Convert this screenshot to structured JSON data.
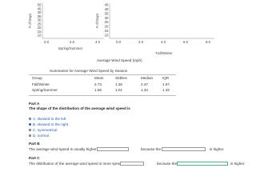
{
  "histograms": [
    {
      "y_label": "# of Days",
      "y_ticks": [
        10,
        15,
        20,
        25,
        30,
        35,
        40,
        45,
        50
      ],
      "x_ticks": [
        "0.0",
        "2.0",
        "4.0"
      ],
      "x_label": "Spring/Summer"
    },
    {
      "y_label": "# of Days",
      "y_ticks": [
        10,
        15,
        20,
        25,
        30,
        35,
        40,
        45
      ],
      "x_ticks": [
        "0.0",
        "2.0",
        "4.0",
        "6.0",
        "8.0"
      ],
      "x_label": "Fall/Winter"
    }
  ],
  "shared_x_label": "Average Wind Speed (mph)",
  "table": {
    "title": "Summaries for Average Wind Speed by Season",
    "header": [
      "Group",
      "Mean",
      "StdDev",
      "Median",
      "IQR"
    ],
    "rows": [
      [
        "Fall/Winter",
        "2.73",
        "1.36",
        "2.47",
        "1.87"
      ],
      [
        "Spring/Summer",
        "1.56",
        "1.01",
        "1.34",
        "1.32"
      ]
    ]
  },
  "part_a": {
    "label": "Part A",
    "question": "The shape of the distribution of the average wind speed is",
    "options": [
      "A. skewed to the left",
      "B. skewed to the right",
      "C. symmetrical",
      "D. normal"
    ],
    "selected": 1
  },
  "part_b": {
    "label": "Part B",
    "text1": "The average wind speed is usually higher in",
    "text2": "because the",
    "text3": "is higher."
  },
  "part_c": {
    "label": "Part C",
    "text1": "The distribution of the average wind speed is more spread in",
    "text2": "because the",
    "text3": "is higher."
  }
}
